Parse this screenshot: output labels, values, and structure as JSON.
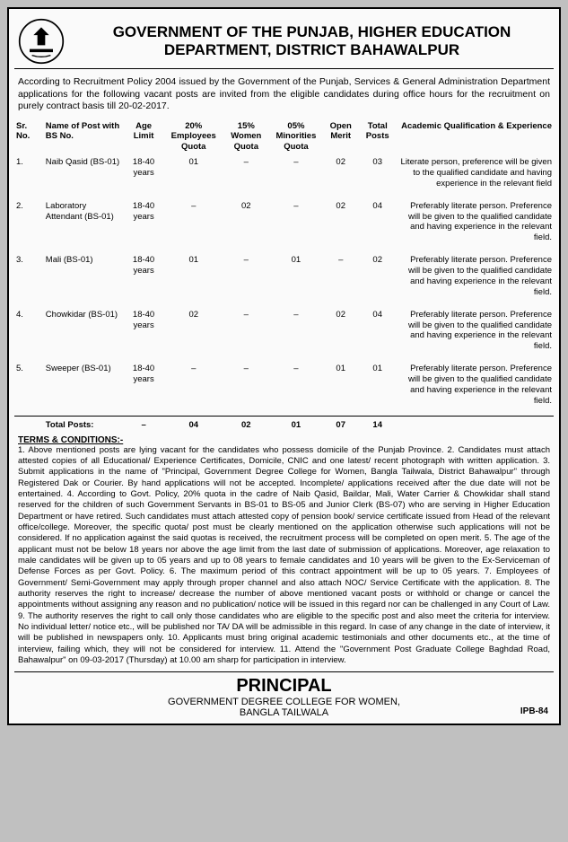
{
  "header": {
    "title": "GOVERNMENT OF THE PUNJAB, HIGHER EDUCATION DEPARTMENT, DISTRICT BAHAWALPUR"
  },
  "intro": "According to Recruitment Policy 2004 issued by the Government of the Punjab, Services & General Administration Department applications for the following vacant posts are invited from the eligible candidates during office hours for the recruitment on purely contract basis till 20-02-2017.",
  "columns": {
    "sr": "Sr. No.",
    "post": "Name of Post with BS No.",
    "age": "Age Limit",
    "emp": "20% Employees Quota",
    "women": "15% Women Quota",
    "min": "05% Minorities Quota",
    "open": "Open Merit",
    "total": "Total Posts",
    "qual": "Academic Qualification & Experience"
  },
  "rows": [
    {
      "sr": "1.",
      "post": "Naib Qasid (BS-01)",
      "age": "18-40 years",
      "emp": "01",
      "women": "–",
      "min": "–",
      "open": "02",
      "total": "03",
      "qual": "Literate person, preference will be given to the qualified candidate and having experience in the relevant field"
    },
    {
      "sr": "2.",
      "post": "Laboratory Attendant (BS-01)",
      "age": "18-40 years",
      "emp": "–",
      "women": "02",
      "min": "–",
      "open": "02",
      "total": "04",
      "qual": "Preferably literate person. Preference will be given to the qualified candidate and having experience in the relevant field."
    },
    {
      "sr": "3.",
      "post": "Mali (BS-01)",
      "age": "18-40 years",
      "emp": "01",
      "women": "–",
      "min": "01",
      "open": "–",
      "total": "02",
      "qual": "Preferably literate person. Preference will be given to the qualified candidate and having experience in the relevant field."
    },
    {
      "sr": "4.",
      "post": "Chowkidar (BS-01)",
      "age": "18-40 years",
      "emp": "02",
      "women": "–",
      "min": "–",
      "open": "02",
      "total": "04",
      "qual": "Preferably literate person. Preference will be given to the qualified candidate and having experience in the relevant field."
    },
    {
      "sr": "5.",
      "post": "Sweeper (BS-01)",
      "age": "18-40 years",
      "emp": "–",
      "women": "–",
      "min": "–",
      "open": "01",
      "total": "01",
      "qual": "Preferably literate person. Preference will be given to the qualified candidate and having experience in the relevant field."
    }
  ],
  "totals": {
    "label": "Total Posts:",
    "age": "–",
    "emp": "04",
    "women": "02",
    "min": "01",
    "open": "07",
    "total": "14"
  },
  "terms_head": "TERMS & CONDITIONS:-",
  "terms": "1. Above mentioned posts are lying vacant for the candidates who possess domicile of the Punjab Province. 2. Candidates must attach attested copies of all Educational/ Experience Certificates, Domicile, CNIC and one latest/ recent photograph with written application. 3. Submit applications in the name of \"Principal, Government Degree College for Women, Bangla Tailwala, District Bahawalpur\" through Registered Dak or Courier. By hand applications will not be accepted. Incomplete/ applications received after the due date will not be entertained. 4. According to Govt. Policy, 20% quota in the cadre of Naib Qasid, Baildar, Mali, Water Carrier & Chowkidar shall stand reserved for the children of such Government Servants in BS-01 to BS-05 and Junior Clerk (BS-07) who are serving in Higher Education Department or have retired. Such candidates must attach attested copy of pension book/ service certificate issued from Head of the relevant office/college. Moreover, the specific quota/ post must be clearly mentioned on the application otherwise such applications will not be considered. If no application against the said quotas is received, the recruitment process will be completed on open merit. 5. The age of the applicant must not be below 18 years nor above the age limit from the last date of submission of applications. Moreover, age relaxation to male candidates will be given up to 05 years and up to 08 years to female candidates and 10 years will be given to the Ex-Serviceman of Defense Forces as per Govt. Policy. 6. The maximum period of this contract appointment will be up to 05 years. 7. Employees of Government/ Semi-Government may apply through proper channel and also attach NOC/ Service Certificate with the application. 8. The authority reserves the right to increase/ decrease the number of above mentioned vacant posts or withhold or change or cancel the appointments without assigning any reason and no publication/ notice will be issued in this regard nor can be challenged in any Court of Law. 9. The authority reserves the right to call only those candidates who are eligible to the specific post and also meet the criteria for interview. No individual letter/ notice etc., will be published nor TA/ DA will be admissible in this regard. In case of any change in the date of interview, it will be published in newspapers only. 10. Applicants must bring original academic testimonials and other documents etc., at the time of interview, failing which, they will not be considered for interview. 11. Attend the \"Government Post Graduate College Baghdad Road, Bahawalpur\" on 09-03-2017 (Thursday) at 10.00 am sharp for participation in interview.",
  "footer": {
    "principal": "PRINCIPAL",
    "college1": "GOVERNMENT DEGREE COLLEGE FOR WOMEN,",
    "college2": "BANGLA TAILWALA",
    "ipb": "IPB-84"
  }
}
